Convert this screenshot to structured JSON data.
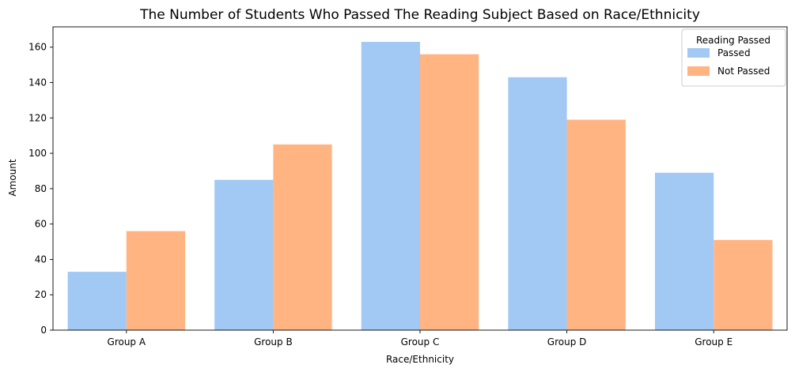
{
  "chart_data": {
    "type": "bar",
    "title": "The Number of Students Who Passed The Reading Subject Based on Race/Ethnicity",
    "xlabel": "Race/Ethnicity",
    "ylabel": "Amount",
    "categories": [
      "Group A",
      "Group B",
      "Group C",
      "Group D",
      "Group E"
    ],
    "series": [
      {
        "name": "Passed",
        "values": [
          33,
          85,
          163,
          143,
          89
        ],
        "color": "#a1c9f4"
      },
      {
        "name": "Not Passed",
        "values": [
          56,
          105,
          156,
          119,
          51
        ],
        "color": "#ffb482"
      }
    ],
    "ylim": [
      0,
      171.5
    ],
    "yticks": [
      0,
      20,
      40,
      60,
      80,
      100,
      120,
      140,
      160
    ],
    "grid": false,
    "legend": {
      "title": "Reading Passed",
      "placement": "top-right"
    }
  }
}
